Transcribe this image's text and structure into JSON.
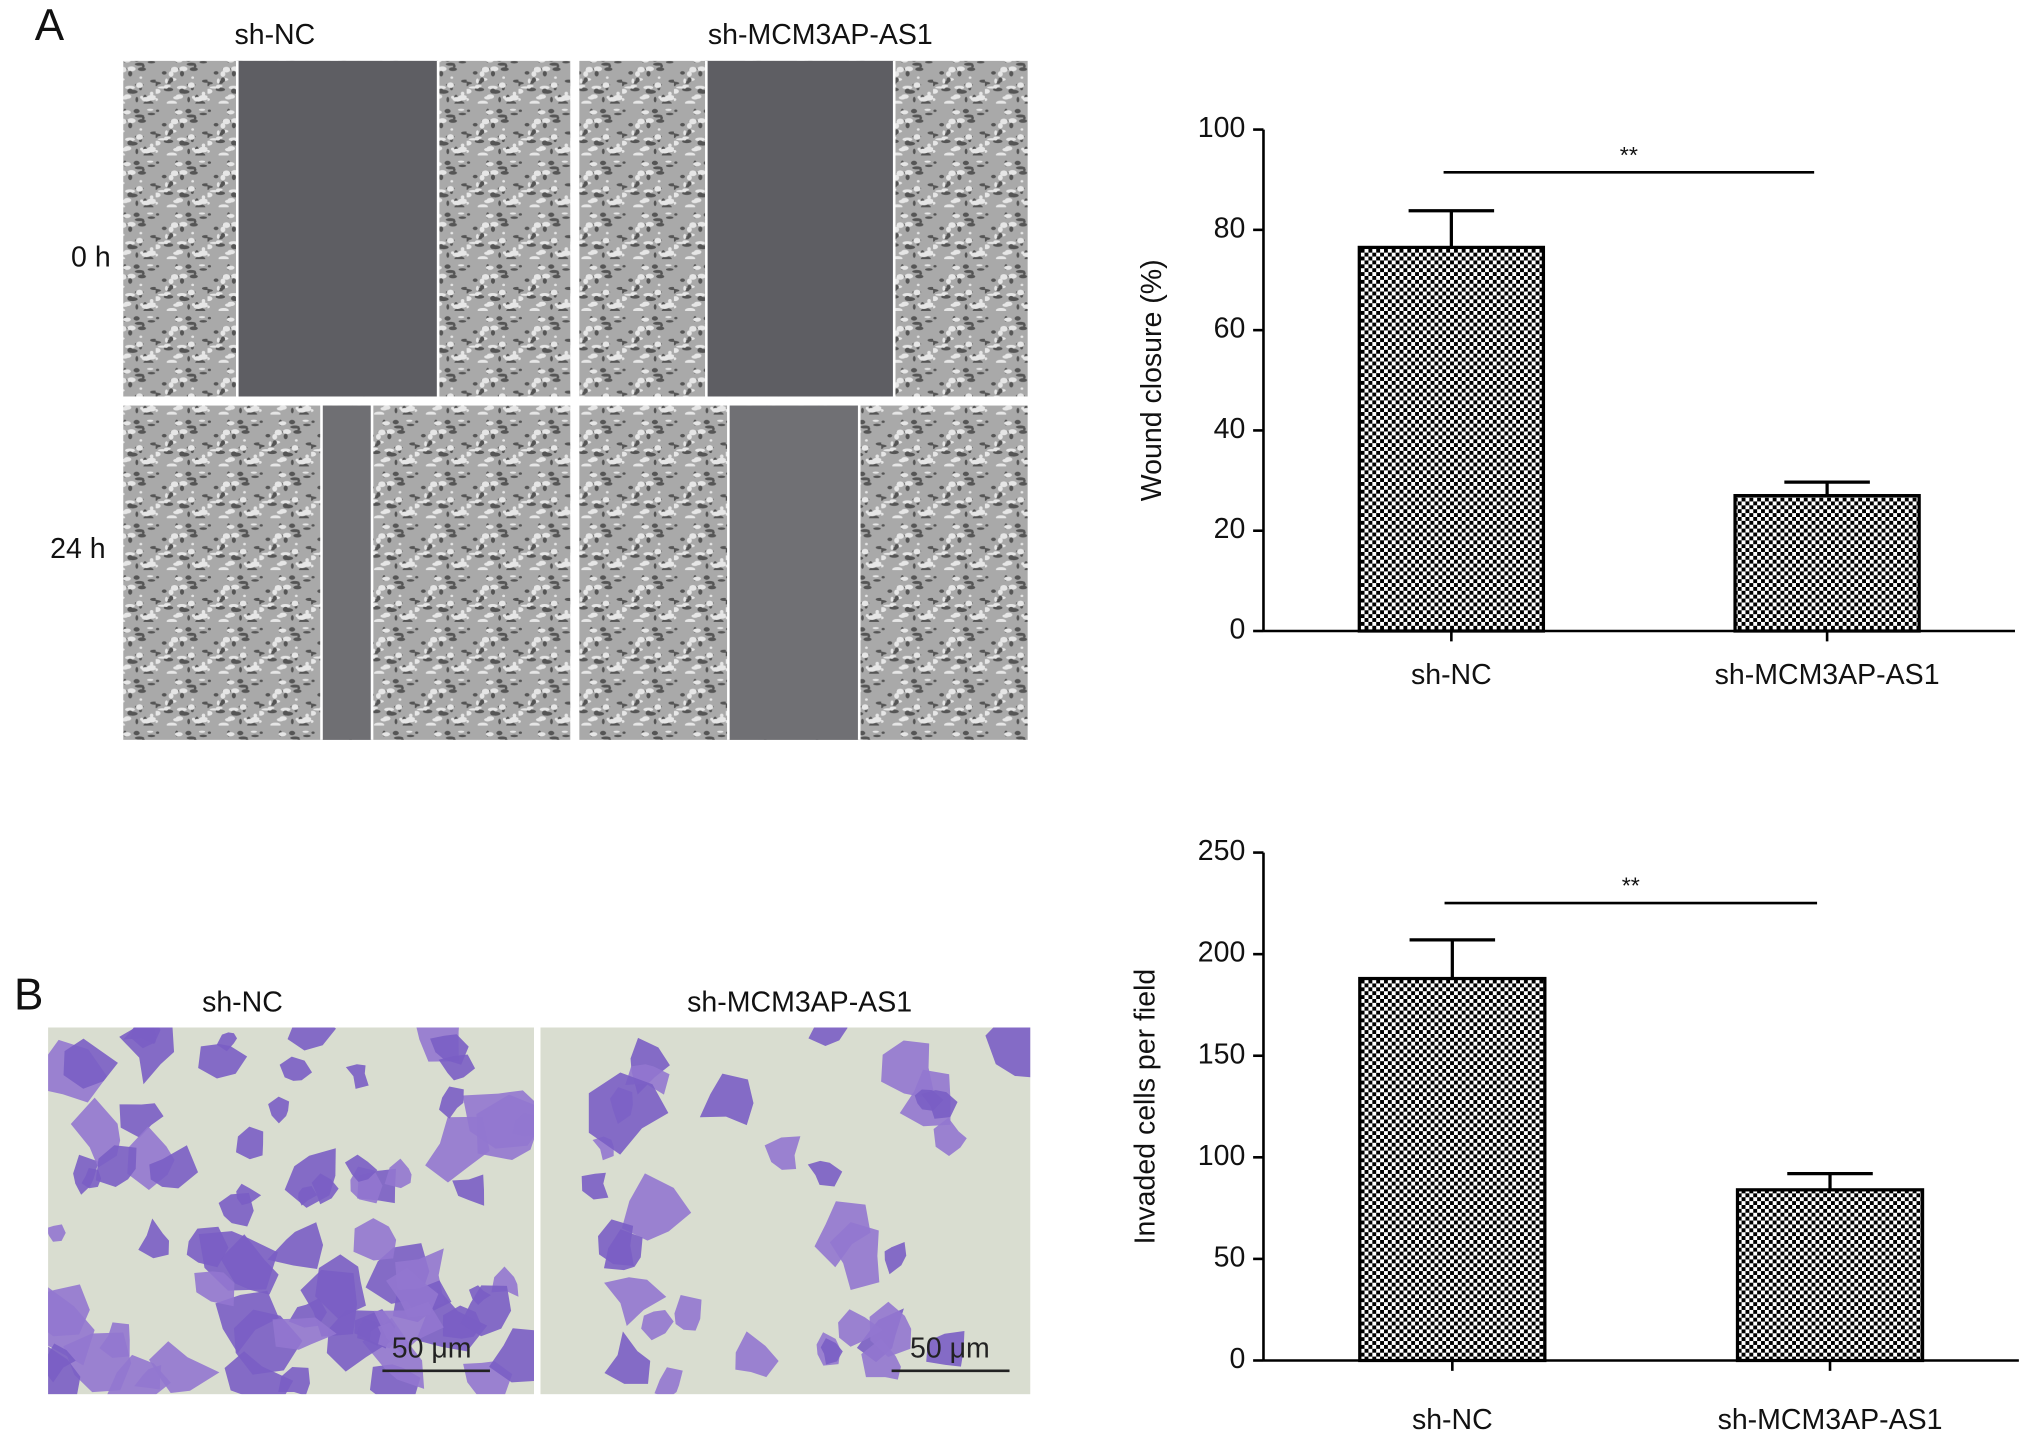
{
  "panel_labels": [
    "A",
    "B"
  ],
  "wound_images": {
    "columns": [
      "sh-NC",
      "sh-MCM3AP-AS1"
    ],
    "rows": [
      "0 h",
      "24 h"
    ]
  },
  "invasion_images": {
    "columns": [
      "sh-NC",
      "sh-MCM3AP-AS1"
    ],
    "scale_bars": [
      "50 μm",
      "50 μm"
    ]
  },
  "chart_data": [
    {
      "type": "bar",
      "ylabel": "Wound closure (%)",
      "categories": [
        "sh-NC",
        "sh-MCM3AP-AS1"
      ],
      "values": [
        76.5,
        27
      ],
      "errors": [
        7.3,
        2.7
      ],
      "color": "#000000",
      "annotation": "**",
      "ylim": [
        0,
        100
      ],
      "yticks": [
        0,
        20,
        40,
        60,
        80,
        100
      ]
    },
    {
      "type": "bar",
      "ylabel": "Invaded cells per field",
      "categories": [
        "sh-NC",
        "sh-MCM3AP-AS1"
      ],
      "values": [
        188,
        84
      ],
      "errors": [
        19,
        8
      ],
      "color": "#000000",
      "annotation": "**",
      "ylim": [
        0,
        250
      ],
      "yticks": [
        0,
        50,
        100,
        150,
        200,
        250
      ]
    }
  ]
}
